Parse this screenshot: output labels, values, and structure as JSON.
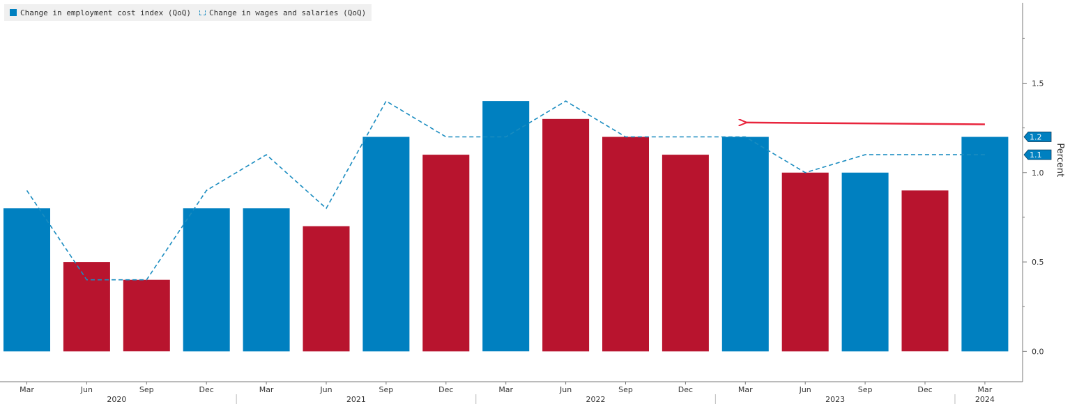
{
  "legend": {
    "bars_label": "Change in employment cost index (QoQ)",
    "line_label": "Change in wages and salaries (QoQ)"
  },
  "chart_data": {
    "type": "bar",
    "categories": [
      "Mar",
      "Jun",
      "Sep",
      "Dec",
      "Mar",
      "Jun",
      "Sep",
      "Dec",
      "Mar",
      "Jun",
      "Sep",
      "Dec",
      "Mar",
      "Jun",
      "Sep",
      "Dec",
      "Mar"
    ],
    "year_labels": [
      {
        "label": "2020",
        "index": 1.5
      },
      {
        "label": "2021",
        "index": 5.5
      },
      {
        "label": "2022",
        "index": 9.5
      },
      {
        "label": "2023",
        "index": 13.5
      },
      {
        "label": "2024",
        "index": 16
      }
    ],
    "year_dividers": [
      3,
      7,
      11,
      15
    ],
    "series": [
      {
        "name": "Change in employment cost index (QoQ)",
        "kind": "bar",
        "values": [
          0.8,
          0.5,
          0.4,
          0.8,
          0.8,
          0.7,
          1.2,
          1.1,
          1.4,
          1.3,
          1.2,
          1.1,
          1.2,
          1.0,
          1.0,
          0.9,
          1.2
        ],
        "bar_colors": [
          "#0080c0",
          "#b8142e",
          "#b8142e",
          "#0080c0",
          "#0080c0",
          "#b8142e",
          "#0080c0",
          "#b8142e",
          "#0080c0",
          "#b8142e",
          "#b8142e",
          "#b8142e",
          "#0080c0",
          "#b8142e",
          "#0080c0",
          "#b8142e",
          "#0080c0"
        ]
      },
      {
        "name": "Change in wages and salaries (QoQ)",
        "kind": "line",
        "style": "dashed",
        "color": "#1a8cc0",
        "values": [
          0.9,
          0.4,
          0.4,
          0.9,
          1.1,
          0.8,
          1.4,
          1.2,
          1.2,
          1.4,
          1.2,
          1.2,
          1.2,
          1.0,
          1.1,
          1.1,
          1.1
        ]
      }
    ],
    "last_value_tags": [
      {
        "label": "1.2",
        "value": 1.2
      },
      {
        "label": "1.1",
        "value": 1.1
      }
    ],
    "annotation": {
      "type": "arrow",
      "color": "#e8243c",
      "from": {
        "index": 16,
        "value": 1.27
      },
      "to": {
        "index": 12,
        "value": 1.28
      }
    },
    "yaxis": {
      "label": "Percent",
      "position": "right",
      "ticks": [
        0.0,
        0.5,
        1.0,
        1.5
      ],
      "tick_labels": [
        "0.0",
        "0.5",
        "1.0",
        "1.5"
      ],
      "ylim": [
        -0.17,
        1.95
      ]
    },
    "legend_position": "top-left",
    "grid": false
  },
  "colors": {
    "blue": "#0080c0",
    "red": "#b8142e",
    "line": "#1a8cc0",
    "tag": "#0080c0",
    "arrow": "#e8243c",
    "axis": "#777777"
  }
}
